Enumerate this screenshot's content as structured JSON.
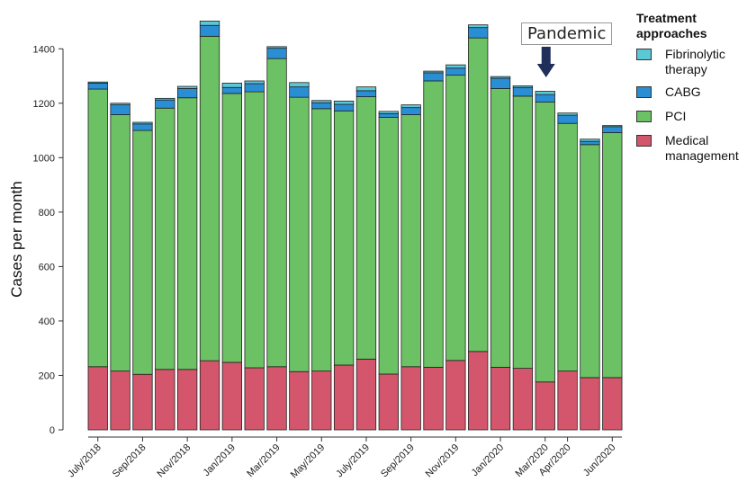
{
  "chart_data": {
    "type": "bar",
    "stacked": true,
    "ylabel": "Cases per month",
    "ylim": [
      0,
      1500
    ],
    "yticks": [
      0,
      200,
      400,
      600,
      800,
      1000,
      1200,
      1400
    ],
    "grid": false,
    "legend_position": "right",
    "legend_title": "Treatment approaches",
    "annotation": "Pandemic",
    "annotation_target": "Mar/2020",
    "x_tick_labels": [
      {
        "label": "July/2018",
        "index": 0
      },
      {
        "label": "Sep/2018",
        "index": 2
      },
      {
        "label": "Nov/2018",
        "index": 4
      },
      {
        "label": "Jan/2019",
        "index": 6
      },
      {
        "label": "Mar/2019",
        "index": 8
      },
      {
        "label": "May/2019",
        "index": 10
      },
      {
        "label": "July/2019",
        "index": 12
      },
      {
        "label": "Sep/2019",
        "index": 14
      },
      {
        "label": "Nov/2019",
        "index": 16
      },
      {
        "label": "Jan/2020",
        "index": 18
      },
      {
        "label": "Mar/2020",
        "index": 20
      },
      {
        "label": "Apr/2020",
        "index": 21
      },
      {
        "label": "Jun/2020",
        "index": 23
      }
    ],
    "series": [
      {
        "name": "Medical management",
        "color": "#d4566c",
        "values": [
          232,
          216,
          204,
          222,
          222,
          254,
          248,
          228,
          232,
          214,
          216,
          238,
          260,
          205,
          232,
          230,
          255,
          288,
          230,
          226,
          176,
          216,
          192,
          192
        ]
      },
      {
        "name": "PCI",
        "color": "#6cc164",
        "values": [
          1020,
          942,
          896,
          960,
          998,
          1192,
          988,
          1014,
          1132,
          1008,
          964,
          934,
          964,
          943,
          926,
          1052,
          1048,
          1152,
          1024,
          1000,
          1028,
          910,
          856,
          900
        ]
      },
      {
        "name": "CABG",
        "color": "#2a8ed4",
        "values": [
          22,
          36,
          24,
          30,
          34,
          40,
          22,
          30,
          38,
          38,
          22,
          24,
          22,
          14,
          26,
          30,
          26,
          38,
          38,
          32,
          28,
          30,
          12,
          22
        ]
      },
      {
        "name": "Fibrinolytic therapy",
        "color": "#5cc8d6",
        "values": [
          4,
          6,
          6,
          6,
          8,
          16,
          16,
          10,
          6,
          16,
          8,
          12,
          14,
          8,
          10,
          6,
          12,
          10,
          6,
          6,
          12,
          8,
          8,
          4
        ]
      }
    ]
  }
}
